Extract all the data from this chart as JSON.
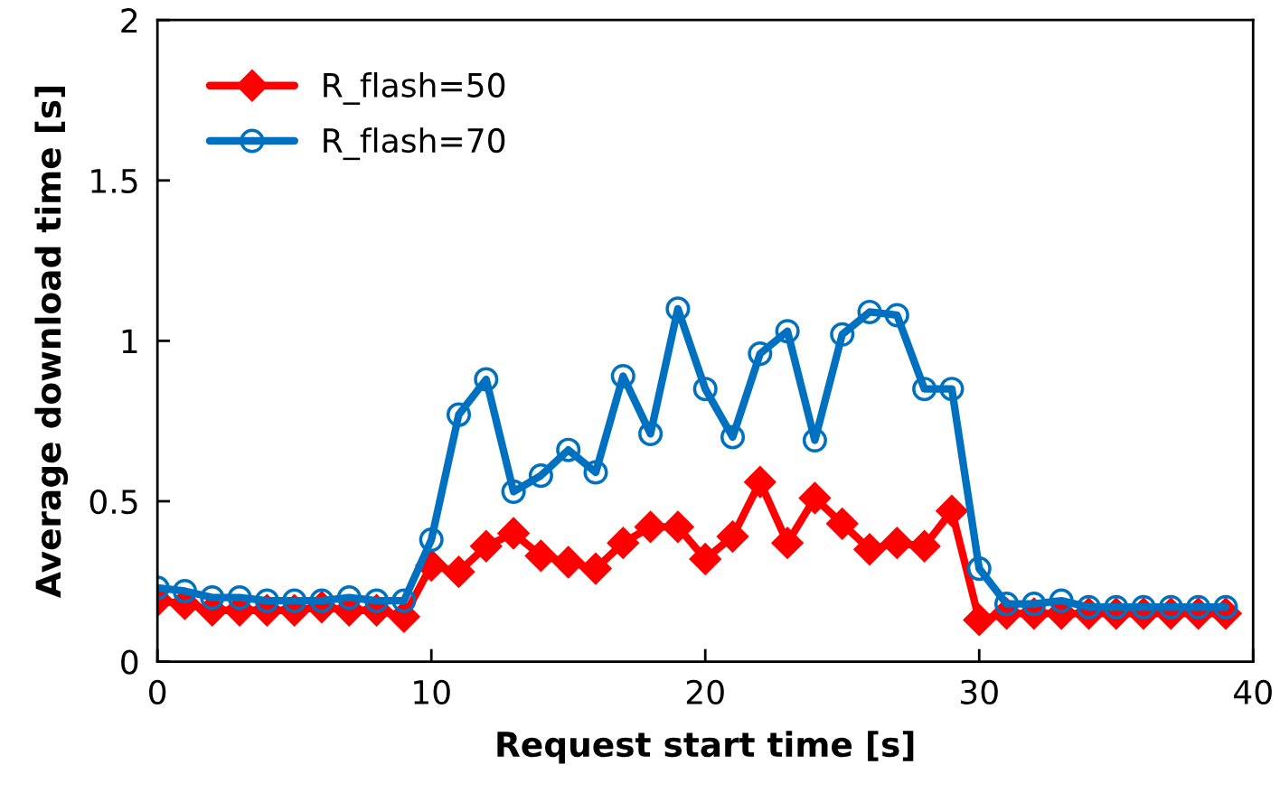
{
  "chart_data": {
    "type": "line",
    "xlabel": "Request start time [s]",
    "ylabel": "Average download time [s]",
    "x": [
      0,
      1,
      2,
      3,
      4,
      5,
      6,
      7,
      8,
      9,
      10,
      11,
      12,
      13,
      14,
      15,
      16,
      17,
      18,
      19,
      20,
      21,
      22,
      23,
      24,
      25,
      26,
      27,
      28,
      29,
      30,
      31,
      32,
      33,
      34,
      35,
      36,
      37,
      38,
      39
    ],
    "series": [
      {
        "name": "R_flash=50",
        "color": "#ff0000",
        "marker": "diamond",
        "values": [
          0.19,
          0.18,
          0.16,
          0.16,
          0.16,
          0.16,
          0.17,
          0.16,
          0.16,
          0.14,
          0.3,
          0.28,
          0.36,
          0.4,
          0.33,
          0.31,
          0.29,
          0.37,
          0.42,
          0.42,
          0.32,
          0.39,
          0.56,
          0.37,
          0.51,
          0.43,
          0.35,
          0.37,
          0.36,
          0.47,
          0.13,
          0.15,
          0.15,
          0.15,
          0.15,
          0.15,
          0.15,
          0.15,
          0.15,
          0.15
        ]
      },
      {
        "name": "R_flash=70",
        "color": "#0070c0",
        "marker": "circle",
        "values": [
          0.23,
          0.22,
          0.2,
          0.2,
          0.19,
          0.19,
          0.19,
          0.2,
          0.19,
          0.19,
          0.38,
          0.77,
          0.88,
          0.53,
          0.58,
          0.66,
          0.59,
          0.89,
          0.71,
          1.1,
          0.85,
          0.7,
          0.96,
          1.03,
          0.69,
          1.02,
          1.09,
          1.08,
          0.85,
          0.85,
          0.29,
          0.18,
          0.18,
          0.19,
          0.17,
          0.17,
          0.17,
          0.17,
          0.17,
          0.17
        ]
      }
    ],
    "xlim": [
      0,
      40
    ],
    "xticks": [
      0,
      10,
      20,
      30,
      40
    ],
    "ylim": [
      0,
      2
    ],
    "yticks": [
      0,
      0.5,
      1,
      1.5,
      2
    ],
    "grid": false,
    "legend": "top left",
    "line_style": "solid"
  }
}
